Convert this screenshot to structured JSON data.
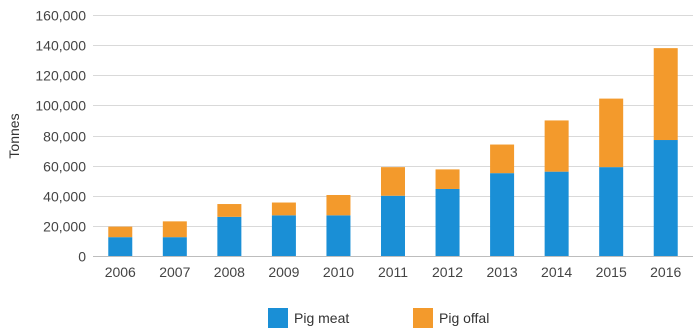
{
  "chart_data": {
    "type": "bar",
    "stacked": true,
    "title": "",
    "xlabel": "",
    "ylabel": "Tonnes",
    "ylim": [
      0,
      160000
    ],
    "yticks": [
      0,
      20000,
      40000,
      60000,
      80000,
      100000,
      120000,
      140000,
      160000
    ],
    "ytick_labels": [
      "0",
      "20,000",
      "40,000",
      "60,000",
      "80,000",
      "100,000",
      "120,000",
      "140,000",
      "160,000"
    ],
    "categories": [
      "2006",
      "2007",
      "2008",
      "2009",
      "2010",
      "2011",
      "2012",
      "2013",
      "2014",
      "2015",
      "2016"
    ],
    "series": [
      {
        "name": "Pig meat",
        "color": "#1a8fd6",
        "values": [
          12500,
          12500,
          26000,
          27000,
          27000,
          40000,
          44500,
          55000,
          56000,
          59000,
          77000
        ]
      },
      {
        "name": "Pig offal",
        "color": "#f39a2c",
        "values": [
          7000,
          10500,
          8500,
          8500,
          13500,
          19000,
          13000,
          19000,
          34000,
          45500,
          61000
        ]
      }
    ],
    "grid": "horizontal",
    "legend": "bottom-center"
  }
}
